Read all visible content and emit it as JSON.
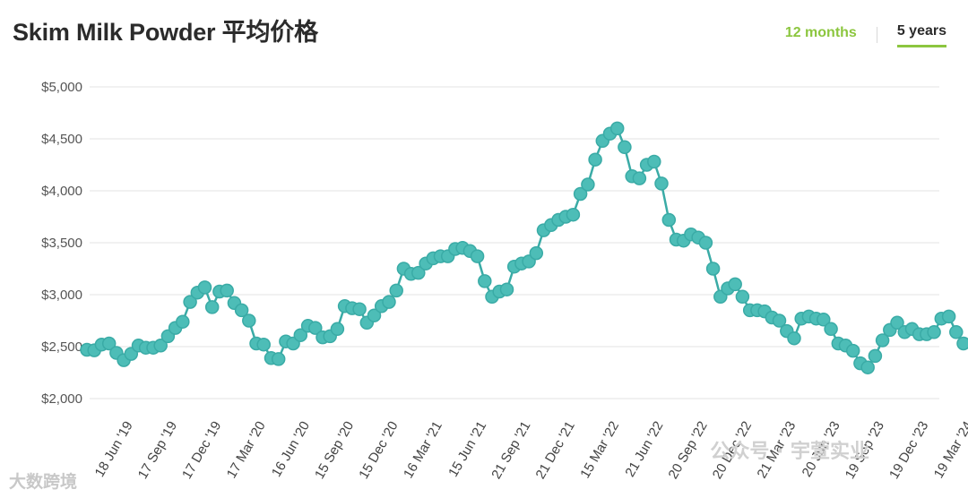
{
  "header": {
    "title": "Skim Milk Powder 平均价格",
    "tab_12": "12 months",
    "tab_5": "5 years"
  },
  "watermarks": {
    "left": "大数跨境",
    "right": "公众号 · 宇萱实业"
  },
  "colors": {
    "line": "#3aaba6",
    "marker_fill": "#4dbdb7",
    "accent": "#8cc63f",
    "grid": "#e3e3e3"
  },
  "chart_data": {
    "type": "line",
    "title": "Skim Milk Powder 平均价格",
    "xlabel": "",
    "ylabel": "",
    "ylim": [
      2000,
      5000
    ],
    "y_ticks": [
      2000,
      2500,
      3000,
      3500,
      4000,
      4500,
      5000
    ],
    "y_tick_labels": [
      "$2,000",
      "$2,500",
      "$3,000",
      "$3,500",
      "$4,000",
      "$4,500",
      "$5,000"
    ],
    "grid": true,
    "x_tick_labels": [
      "18 Jun '19",
      "17 Sep '19",
      "17 Dec '19",
      "17 Mar '20",
      "16 Jun '20",
      "15 Sep '20",
      "15 Dec '20",
      "16 Mar '21",
      "15 Jun '21",
      "21 Sep '21",
      "21 Dec '21",
      "15 Mar '22",
      "21 Jun '22",
      "20 Sep '22",
      "20 Dec '22",
      "21 Mar '23",
      "20 Jun '23",
      "19 Sep '23",
      "19 Dec '23",
      "19 Mar '24"
    ],
    "x_tick_positions": [
      6,
      12,
      18,
      24,
      30,
      36,
      42,
      48,
      54,
      60,
      66,
      72,
      78,
      84,
      90,
      96,
      102,
      108,
      114,
      120
    ],
    "values": [
      2470,
      2465,
      2520,
      2530,
      2440,
      2370,
      2430,
      2510,
      2490,
      2490,
      2510,
      2600,
      2680,
      2740,
      2930,
      3020,
      3070,
      2880,
      3030,
      3040,
      2920,
      2850,
      2750,
      2530,
      2520,
      2390,
      2380,
      2550,
      2530,
      2610,
      2700,
      2680,
      2590,
      2600,
      2670,
      2890,
      2870,
      2860,
      2730,
      2800,
      2890,
      2930,
      3040,
      3250,
      3200,
      3210,
      3300,
      3350,
      3370,
      3370,
      3440,
      3450,
      3420,
      3370,
      3130,
      2980,
      3030,
      3050,
      3270,
      3300,
      3320,
      3400,
      3620,
      3670,
      3720,
      3750,
      3770,
      3970,
      4060,
      4300,
      4480,
      4550,
      4600,
      4420,
      4140,
      4120,
      4250,
      4280,
      4070,
      3720,
      3530,
      3520,
      3580,
      3550,
      3500,
      3250,
      2980,
      3060,
      3100,
      2980,
      2850,
      2850,
      2840,
      2780,
      2750,
      2650,
      2580,
      2770,
      2790,
      2770,
      2760,
      2670,
      2530,
      2510,
      2460,
      2340,
      2300,
      2410,
      2560,
      2660,
      2730,
      2640,
      2670,
      2620,
      2620,
      2640,
      2770,
      2790,
      2640,
      2530
    ]
  }
}
